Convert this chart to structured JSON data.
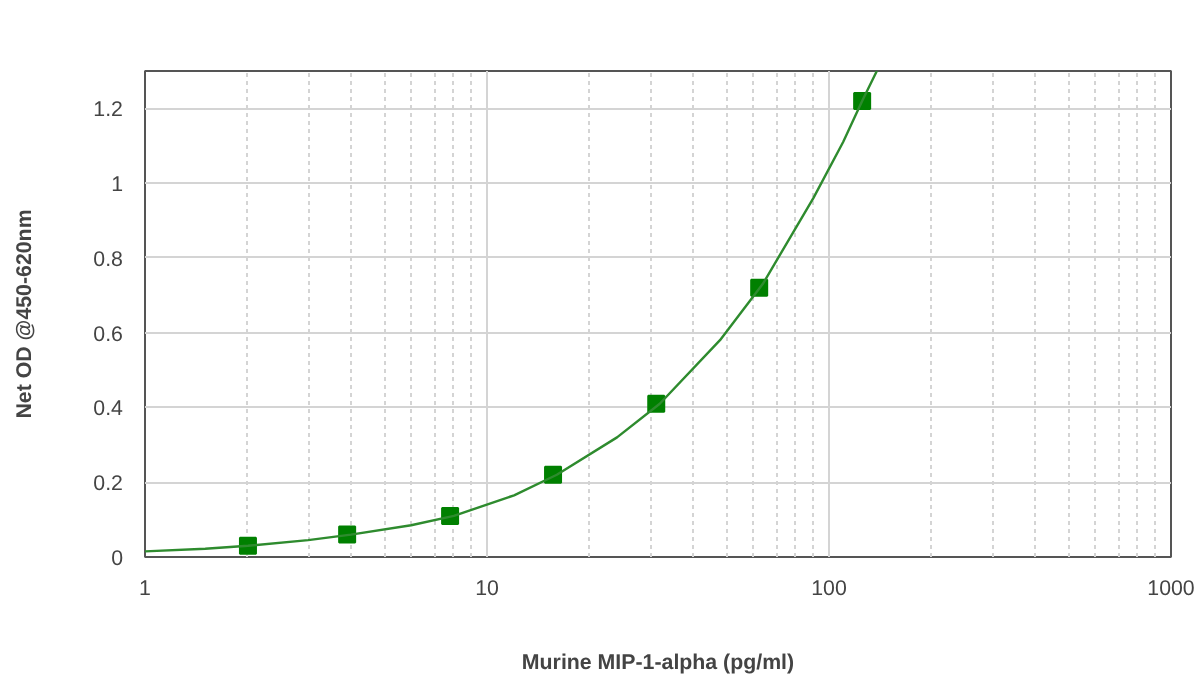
{
  "chart_data": {
    "type": "scatter",
    "xlabel": "Murine MIP-1-alpha (pg/ml)",
    "ylabel": "Net OD @450-620nm",
    "log": "x",
    "grid": true,
    "xlim": [
      1,
      1000
    ],
    "xticks": [
      1,
      10,
      100,
      1000
    ],
    "ylim": [
      0,
      1.3
    ],
    "yticks": [
      0,
      0.2,
      0.4,
      0.6,
      0.8,
      1,
      1.2
    ],
    "series": [
      {
        "color": "#008000",
        "marker": "square",
        "x": [
          2,
          3.9,
          7.8,
          15.6,
          31.25,
          62.5,
          125
        ],
        "values": [
          0.03,
          0.06,
          0.11,
          0.22,
          0.41,
          0.72,
          1.22
        ]
      },
      {
        "type": "line",
        "marker": "none",
        "color": "#2e8b2e",
        "x": [
          1,
          1.5,
          2,
          3,
          4,
          6,
          8,
          12,
          16,
          24,
          32,
          48,
          64,
          90,
          110,
          125,
          138
        ],
        "values": [
          0.015,
          0.022,
          0.03,
          0.045,
          0.06,
          0.085,
          0.11,
          0.165,
          0.22,
          0.32,
          0.41,
          0.58,
          0.73,
          0.96,
          1.11,
          1.22,
          1.3
        ]
      }
    ]
  }
}
